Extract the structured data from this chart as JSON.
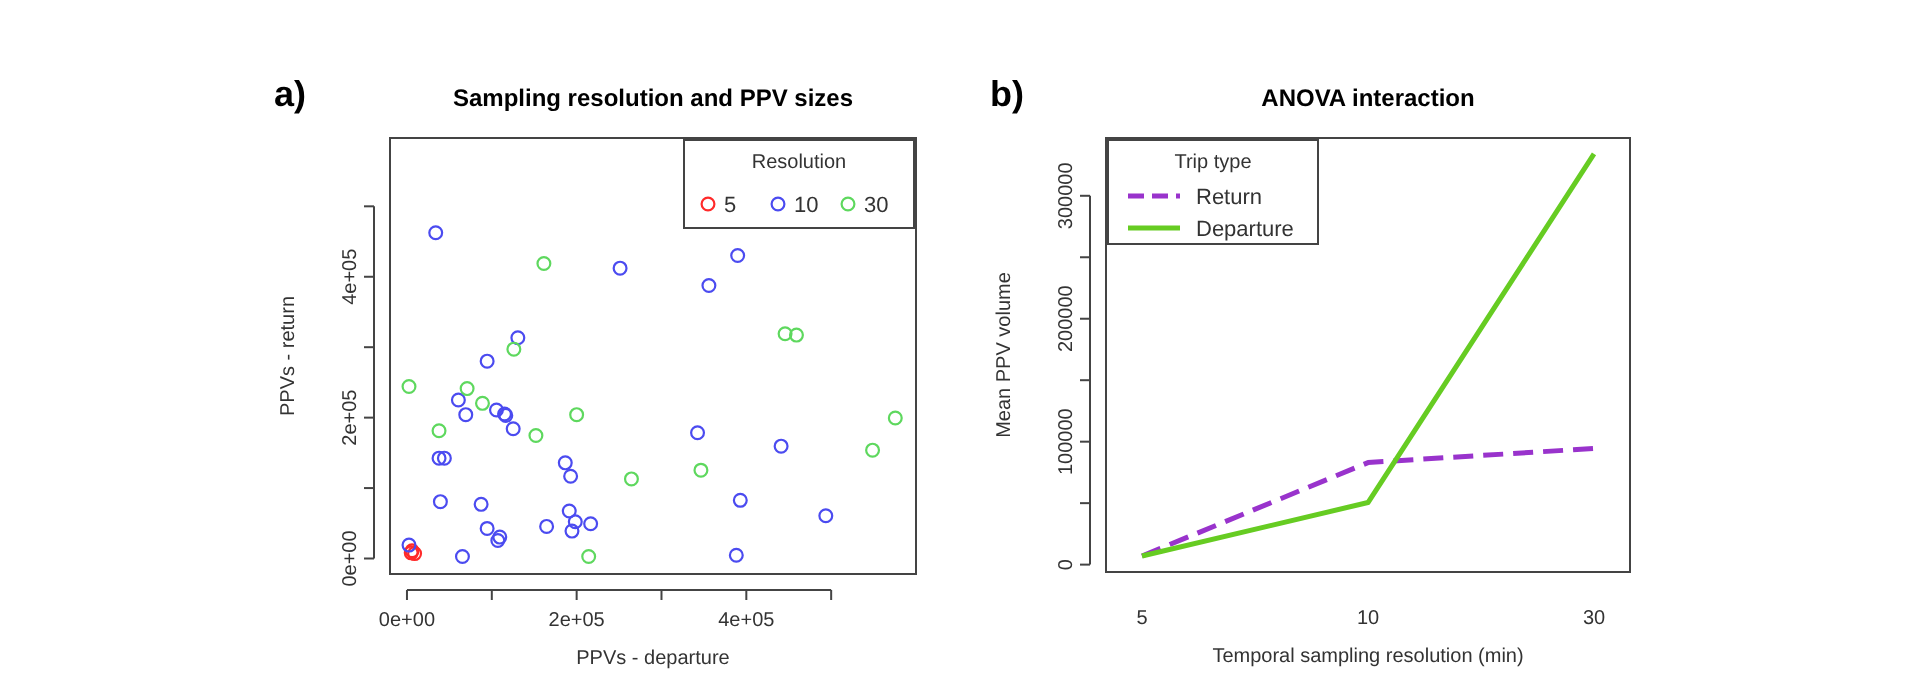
{
  "chart_data": [
    {
      "type": "scatter",
      "title": "Sampling resolution and PPV sizes",
      "xlabel": "PPVs - departure",
      "ylabel": "PPVs - return",
      "legend_title": "Resolution",
      "legend": "top right",
      "marker": "circle",
      "annotations": [
        "a)"
      ],
      "xlim": [
        -20000,
        600000
      ],
      "xticks": [
        {
          "value": 0,
          "label": "0e+00"
        },
        {
          "value": 100000,
          "label": null
        },
        {
          "value": 200000,
          "label": "2e+05"
        },
        {
          "value": 300000,
          "label": null
        },
        {
          "value": 400000,
          "label": "4e+05"
        },
        {
          "value": 500000,
          "label": null
        }
      ],
      "ylim": [
        -22000,
        597000
      ],
      "yticks": [
        {
          "value": 0,
          "label": "0e+00"
        },
        {
          "value": 100000,
          "label": null
        },
        {
          "value": 200000,
          "label": "2e+05"
        },
        {
          "value": 300000,
          "label": null
        },
        {
          "value": 400000,
          "label": "4e+05"
        },
        {
          "value": 500000,
          "label": null
        }
      ],
      "series": [
        {
          "name": "5",
          "color": "#ff2a2a",
          "x": [
            6000,
            9000,
            5000
          ],
          "values": [
            11000,
            7000,
            8000
          ]
        },
        {
          "name": "10",
          "color": "#4b4bf0",
          "x": [
            33900,
            2400,
            65400,
            39400,
            87400,
            94500,
            107100,
            109400,
            94500,
            130700,
            60600,
            69300,
            105500,
            115000,
            116500,
            125200,
            37800,
            44100,
            164600,
            186600,
            192900,
            191300,
            198400,
            194500,
            216500,
            251200,
            355900,
            389800,
            342500,
            392900,
            388200,
            441000,
            493700
          ],
          "values": [
            462500,
            19000,
            2800,
            80700,
            76900,
            42700,
            25600,
            30400,
            280200,
            313400,
            225100,
            204200,
            210800,
            205100,
            203200,
            184200,
            142500,
            142500,
            45600,
            135800,
            116800,
            67400,
            52200,
            38900,
            49400,
            412200,
            387500,
            430200,
            178500,
            82600,
            4700,
            159500,
            60800
          ]
        },
        {
          "name": "30",
          "color": "#5ed85e",
          "x": [
            2400,
            37800,
            70900,
            89000,
            126000,
            161400,
            152000,
            200000,
            264600,
            214200,
            346500,
            445700,
            459100,
            548800,
            575600
          ],
          "values": [
            244100,
            181400,
            241200,
            220300,
            297200,
            418800,
            174700,
            204200,
            113000,
            2800,
            125400,
            319100,
            317200,
            153800,
            199400
          ]
        }
      ]
    },
    {
      "type": "line",
      "title": "ANOVA interaction",
      "xlabel": "Temporal sampling resolution (min)",
      "ylabel": "Mean PPV volume",
      "legend_title": "Trip type",
      "legend": "top left",
      "annotations": [
        "b)"
      ],
      "categories": [
        "5",
        "10",
        "30"
      ],
      "ylim": [
        -6000,
        347000
      ],
      "yticks": [
        0,
        {
          "value": 50000,
          "label": null
        },
        100000,
        {
          "value": 150000,
          "label": null
        },
        200000,
        {
          "value": 250000,
          "label": null
        },
        300000
      ],
      "series": [
        {
          "name": "Return",
          "color": "#9933cc",
          "line_style": "dashed",
          "values": [
            7000,
            83000,
            94500
          ]
        },
        {
          "name": "Departure",
          "color": "#66cc22",
          "line_style": "solid",
          "values": [
            7000,
            50500,
            334000
          ]
        }
      ]
    }
  ]
}
